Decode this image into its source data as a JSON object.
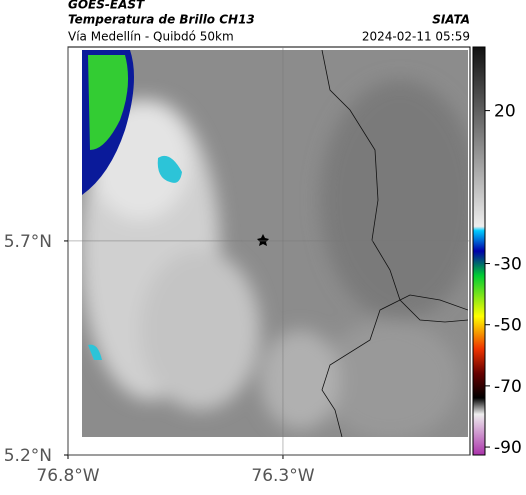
{
  "header": {
    "source": "GOES-EAST",
    "title": "Temperatura de Brillo CH13",
    "subtitle": "Vía Medellín - Quibdó 50km",
    "org": "SIATA",
    "datetime": "2024-02-11 05:59"
  },
  "map": {
    "xlim": [
      -76.8,
      -75.865
    ],
    "ylim": [
      5.2,
      6.153
    ],
    "xticks": [
      {
        "value": -76.8,
        "label": "76.8°W"
      },
      {
        "value": -76.3,
        "label": "76.3°W"
      }
    ],
    "yticks": [
      {
        "value": 5.7,
        "label": "5.7°N"
      },
      {
        "value": 5.2,
        "label": "5.2°N"
      }
    ]
  },
  "colorbar": {
    "lim": [
      40.8,
      -92.6
    ],
    "ticks": [
      20,
      -30,
      -50,
      -70,
      -90
    ]
  }
}
